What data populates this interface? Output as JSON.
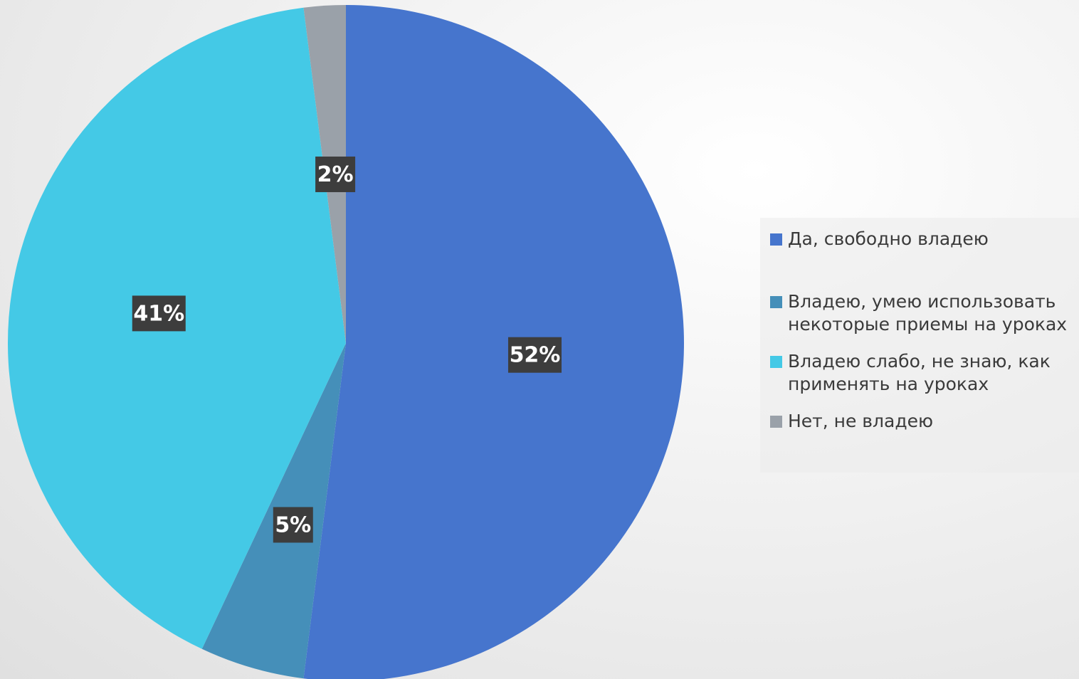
{
  "chart_data": {
    "type": "pie",
    "categories": [
      "Да, свободно владею",
      "Владею, умею использовать некоторые приемы на уроках",
      "Владею слабо, не знаю, как применять на уроках",
      "Нет, не владею"
    ],
    "values": [
      52,
      5,
      41,
      2
    ],
    "data_labels": [
      "52%",
      "5%",
      "41%",
      "2%"
    ],
    "colors": [
      "#4675cd",
      "#458fb9",
      "#44c9e6",
      "#9aa1a9"
    ],
    "legend_position": "right",
    "title": ""
  }
}
